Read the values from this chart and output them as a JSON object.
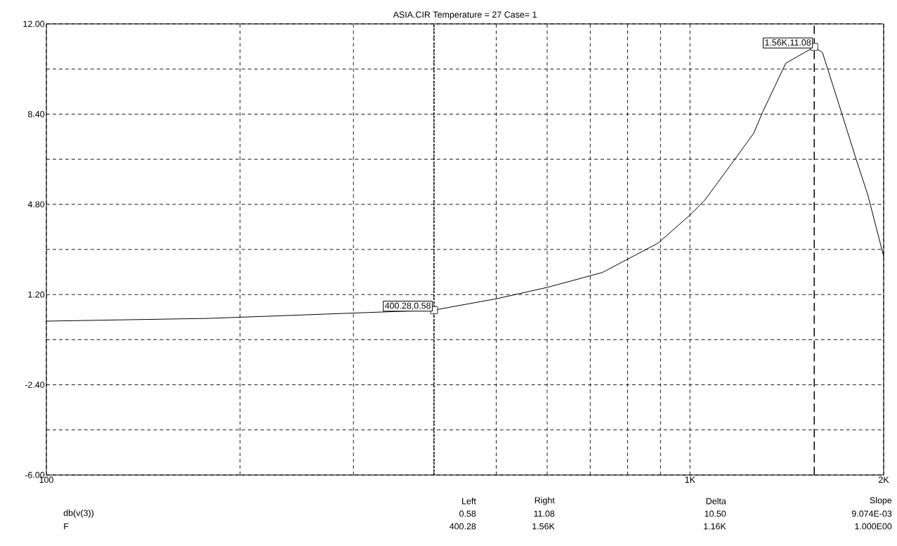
{
  "chart_data": {
    "type": "line",
    "title": "ASIA.CIR Temperature = 27 Case= 1",
    "x": [
      100,
      179,
      400.28,
      502,
      601,
      731,
      892,
      1000,
      1054,
      1193,
      1257,
      1298,
      1409,
      1560,
      1607,
      1718,
      1811,
      1889,
      2000
    ],
    "series": [
      {
        "color": "#000000",
        "values": [
          0.14,
          0.25,
          0.58,
          1.04,
          1.49,
          2.08,
          3.25,
          4.37,
          4.96,
          6.84,
          7.65,
          8.5,
          10.43,
          11.08,
          10.85,
          8.5,
          6.62,
          5.19,
          2.72
        ]
      }
    ],
    "xlim": [
      100,
      2000
    ],
    "ylim": [
      -6,
      12
    ],
    "log": "x",
    "xticks": [
      {
        "value": 100,
        "label": "100"
      },
      {
        "value": 200,
        "label": null
      },
      {
        "value": 300,
        "label": null
      },
      {
        "value": 400,
        "label": null
      },
      {
        "value": 500,
        "label": null
      },
      {
        "value": 600,
        "label": null
      },
      {
        "value": 700,
        "label": null
      },
      {
        "value": 800,
        "label": null
      },
      {
        "value": 900,
        "label": null
      },
      {
        "value": 1000,
        "label": "1K"
      },
      {
        "value": 2000,
        "label": "2K"
      }
    ],
    "yticks": [
      {
        "value": -6,
        "label": "-6.00"
      },
      {
        "value": -4.2,
        "label": null
      },
      {
        "value": -2.4,
        "label": "-2.40"
      },
      {
        "value": -0.6,
        "label": null
      },
      {
        "value": 1.2,
        "label": "1.20"
      },
      {
        "value": 3,
        "label": null
      },
      {
        "value": 4.8,
        "label": "4.80"
      },
      {
        "value": 6.6,
        "label": null
      },
      {
        "value": 8.4,
        "label": "8.40"
      },
      {
        "value": 10.2,
        "label": null
      },
      {
        "value": 12,
        "label": "12.00"
      }
    ],
    "grid": true,
    "marker": "none",
    "line_style": "solid",
    "ref_lines": [
      {
        "axis": "x",
        "value": 400.28,
        "line_style": "dotted",
        "color": "#000000"
      },
      {
        "axis": "x",
        "value": 1560,
        "line_style": "dashed",
        "color": "#000000"
      }
    ],
    "annotations": [
      {
        "text": "400.28,0.58",
        "x": 400.28,
        "y": 0.58
      },
      {
        "text": "1.56K,11.08",
        "x": 1560,
        "y": 11.08
      },
      "Left",
      "Right",
      "Delta",
      "Slope",
      "db(v(3))",
      "0.58",
      "11.08",
      "10.50",
      "9.074E-03",
      "F",
      "400.28",
      "1.56K",
      "1.16K",
      "1.000E00"
    ]
  }
}
